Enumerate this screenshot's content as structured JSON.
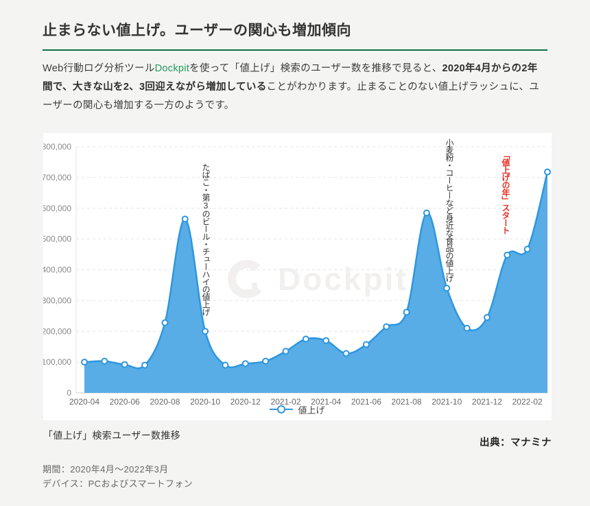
{
  "header": {
    "title": "止まらない値上げ。ユーザーの関心も増加傾向"
  },
  "intro": {
    "segments": [
      {
        "text": "Web行動ログ分析ツール",
        "style": "normal"
      },
      {
        "text": "Dockpit",
        "style": "link"
      },
      {
        "text": "を使って「値上げ」検索のユーザー数を推移で見ると、",
        "style": "normal"
      },
      {
        "text": "2020年4月からの2年間で、大きな山を2、3回迎えながら増加している",
        "style": "bold"
      },
      {
        "text": "ことがわかります。止まることのない値上げラッシュに、ユーザーの関心も増加する一方のようです。",
        "style": "normal"
      }
    ]
  },
  "chart_data": {
    "type": "area",
    "legend": "値上げ",
    "legend_position": "bottom center",
    "grid": "dashed horizontal",
    "x": [
      "2020-04",
      "2020-05",
      "2020-06",
      "2020-07",
      "2020-08",
      "2020-09",
      "2020-10",
      "2020-11",
      "2020-12",
      "2021-01",
      "2021-02",
      "2021-03",
      "2021-04",
      "2021-05",
      "2021-06",
      "2021-07",
      "2021-08",
      "2021-09",
      "2021-10",
      "2021-11",
      "2021-12",
      "2022-01",
      "2022-02",
      "2022-03"
    ],
    "values": [
      100000,
      103000,
      92000,
      90000,
      228000,
      565000,
      200000,
      90000,
      95000,
      103000,
      135000,
      175000,
      170000,
      128000,
      157000,
      215000,
      262000,
      585000,
      340000,
      210000,
      245000,
      448000,
      467000,
      718000
    ],
    "ylim": [
      0,
      800000
    ],
    "ytick_step": 100000,
    "xtick_every": 2,
    "series_fill": "#58ade6",
    "series_stroke": "#2e96df",
    "annotations": [
      {
        "text": "たばこ・第3のビール・チューハイの値上げ",
        "color": "#333333",
        "target": "2020-09 peak"
      },
      {
        "text": "小麦粉・コーヒーなど身近な食品の値上げ",
        "color": "#333333",
        "target": "2021-09 peak"
      },
      {
        "text": "「値上げの年」スタート",
        "color": "#e62f22",
        "target": "2022 rise"
      }
    ],
    "watermark": "Dockpit"
  },
  "caption": "「値上げ」検索ユーザー数推移",
  "source": "出典：マナミナ",
  "meta": {
    "period": "期間：2020年4月～2022年3月",
    "device": "デバイス：PCおよびスマートフォン"
  },
  "colors": {
    "page_bg": "#f4f4f2",
    "panel_bg": "#ffffff",
    "rule_green": "#0e6e45",
    "link_green": "#21995f",
    "chart_fill": "#58ade6",
    "chart_line": "#2e96df",
    "annotation_red": "#e62f22"
  }
}
